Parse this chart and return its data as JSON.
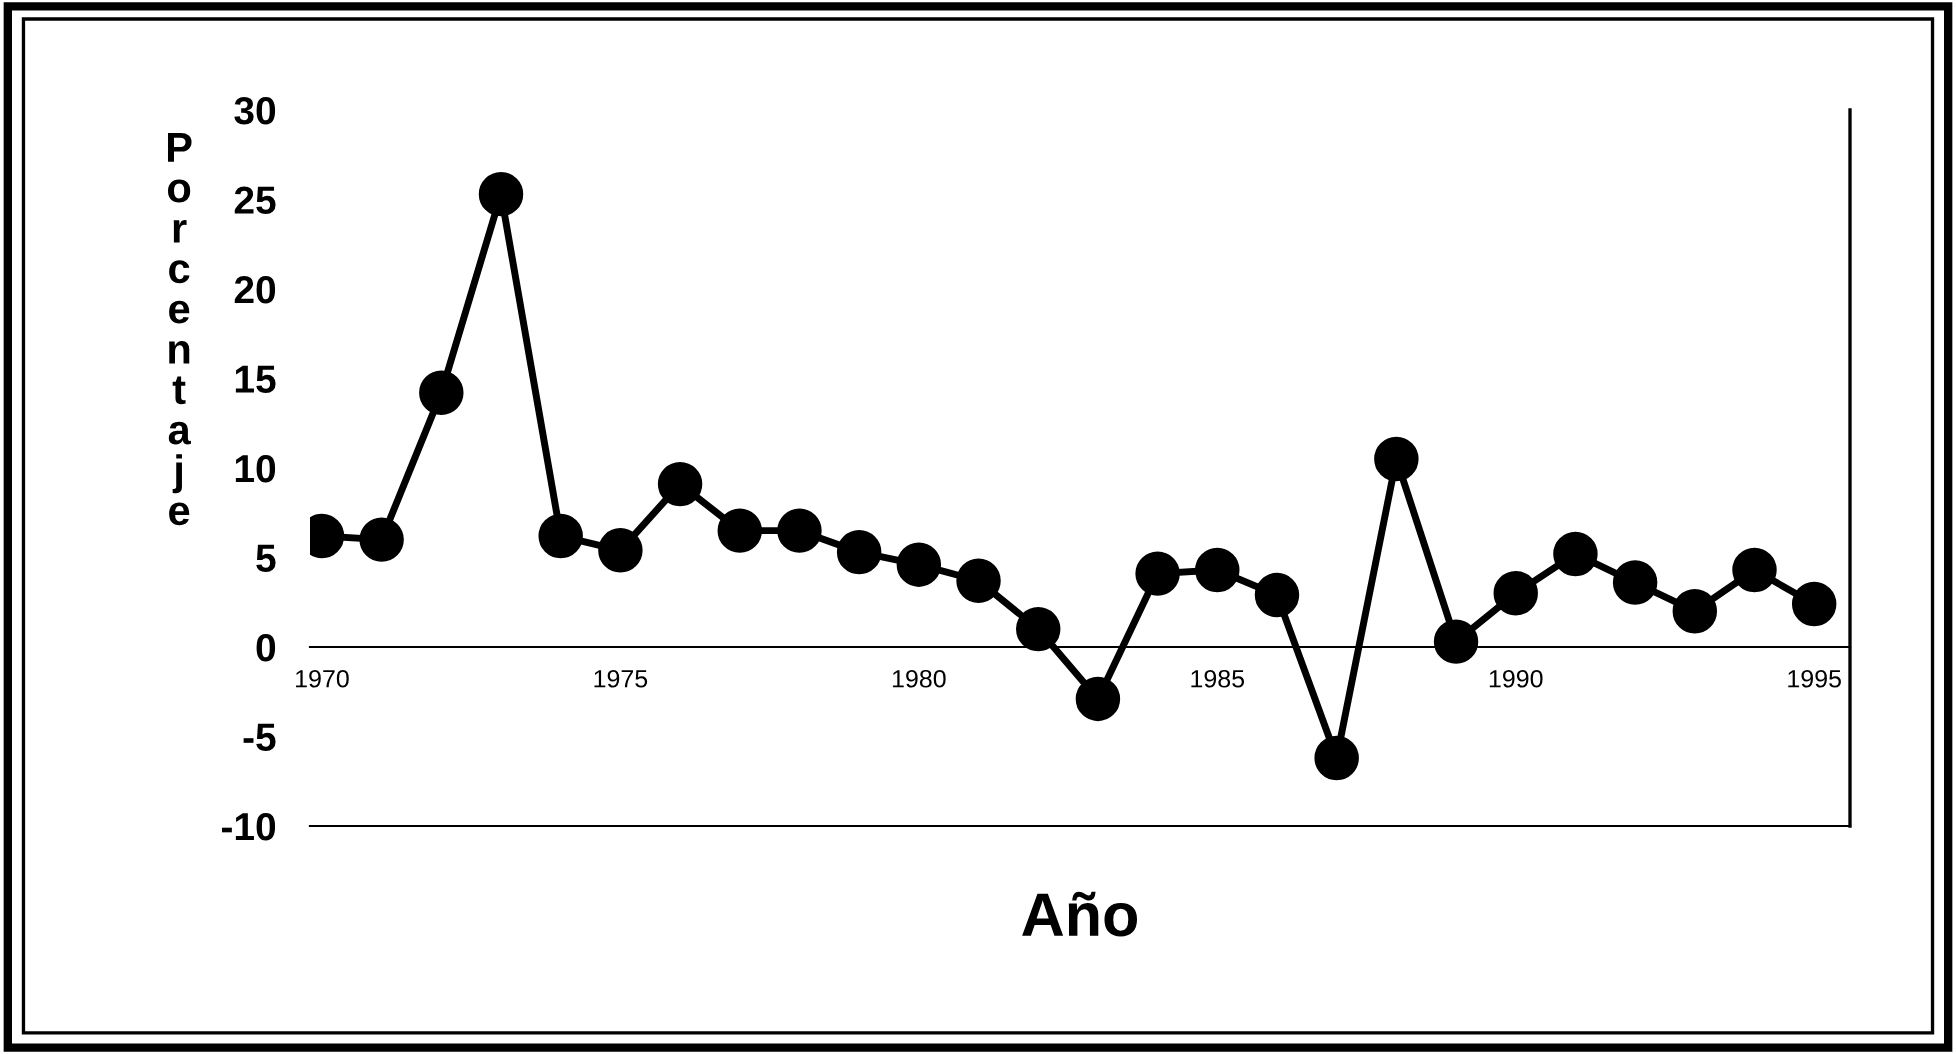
{
  "chart_data": {
    "type": "line",
    "xlabel": "Año",
    "ylabel": "Porcentaje",
    "x": [
      1970,
      1971,
      1972,
      1973,
      1974,
      1975,
      1976,
      1977,
      1978,
      1979,
      1980,
      1981,
      1982,
      1983,
      1984,
      1985,
      1986,
      1987,
      1988,
      1989,
      1990,
      1991,
      1992,
      1993,
      1994,
      1995
    ],
    "series": [
      {
        "color": "#000000",
        "values": [
          6.2,
          6.0,
          14.2,
          25.3,
          6.2,
          5.4,
          9.1,
          6.5,
          6.5,
          5.3,
          4.6,
          3.7,
          1.0,
          -2.9,
          4.1,
          4.3,
          2.9,
          -6.2,
          10.5,
          0.3,
          3.0,
          5.2,
          3.6,
          2.0,
          4.3,
          2.4
        ]
      }
    ],
    "xlim": [
      1969.8,
      1995.6
    ],
    "xticks": [
      1970,
      1975,
      1980,
      1985,
      1990,
      1995
    ],
    "ylim": [
      -10,
      30
    ],
    "yticks": [
      -10,
      -5,
      0,
      5,
      10,
      15,
      20,
      25,
      30
    ],
    "marker": "circle",
    "line_style": "solid",
    "grid": false,
    "legend": false
  }
}
